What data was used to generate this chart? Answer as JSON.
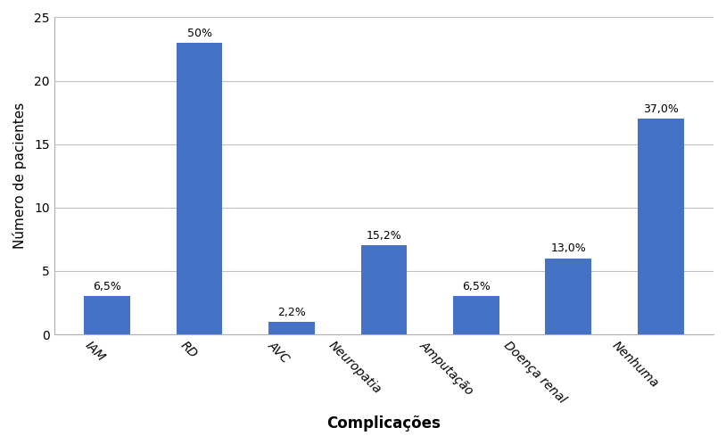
{
  "categories": [
    "IAM",
    "RD",
    "AVC",
    "Neuropatia",
    "Amputação",
    "Doença renal",
    "Nenhuma"
  ],
  "values": [
    3,
    23,
    1,
    7,
    3,
    6,
    17
  ],
  "percentages": [
    "6,5%",
    "50%",
    "2,2%",
    "15,2%",
    "6,5%",
    "13,0%",
    "37,0%"
  ],
  "bar_color": "#4472C4",
  "xlabel": "Complicações",
  "ylabel": "Número de pacientes",
  "ylim": [
    0,
    25
  ],
  "yticks": [
    0,
    5,
    10,
    15,
    20,
    25
  ],
  "background_color": "#ffffff",
  "grid_color": "#c0c0c0",
  "xlabel_fontsize": 12,
  "ylabel_fontsize": 11,
  "tick_label_fontsize": 10,
  "annotation_fontsize": 9,
  "xtick_rotation": -45,
  "bar_width": 0.5
}
